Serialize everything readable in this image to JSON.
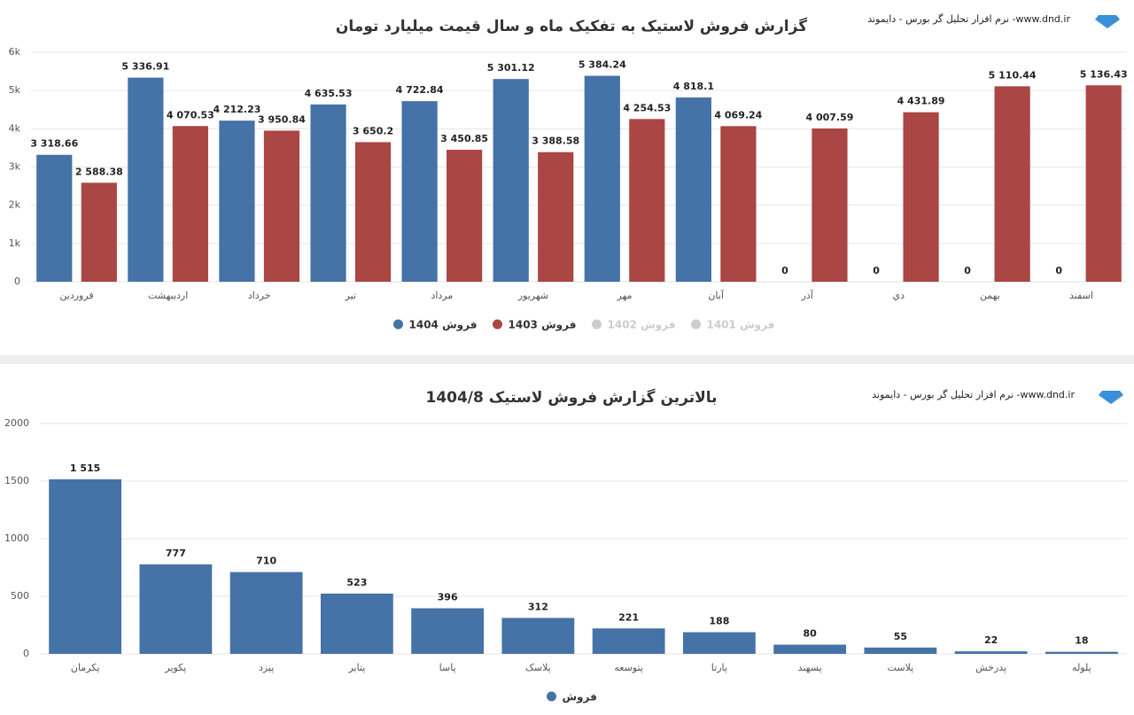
{
  "header": {
    "brand": "نرم افزار تحلیل گر بورس - دایموند -www.dnd.ir"
  },
  "chart_data": [
    {
      "type": "bar",
      "title": "گزارش فروش لاستیک به تفکیک ماه و سال قیمت میلیارد تومان",
      "categories": [
        "فروردین",
        "اردیبهشت",
        "خرداد",
        "تیر",
        "مرداد",
        "شهریور",
        "مهر",
        "آبان",
        "آذر",
        "دي",
        "بهمن",
        "اسفند"
      ],
      "series": [
        {
          "name": "فروش 1404",
          "color": "#4572a7",
          "values": [
            3318.66,
            5336.91,
            4212.23,
            4635.53,
            4722.84,
            5301.12,
            5384.24,
            4818.1,
            0,
            0,
            0,
            0
          ],
          "value_labels": [
            "3 318.66",
            "5 336.91",
            "4 212.23",
            "4 635.53",
            "4 722.84",
            "5 301.12",
            "5 384.24",
            "4 818.1",
            "0",
            "0",
            "0",
            "0"
          ]
        },
        {
          "name": "فروش 1403",
          "color": "#aa4643",
          "values": [
            2588.38,
            4070.53,
            3950.84,
            3650.2,
            3450.85,
            3388.58,
            4254.53,
            4069.24,
            4007.59,
            4431.89,
            5110.44,
            5136.43
          ],
          "value_labels": [
            "2 588.38",
            "4 070.53",
            "3 950.84",
            "3 650.2",
            "3 450.85",
            "3 388.58",
            "4 254.53",
            "4 069.24",
            "4 007.59",
            "4 431.89",
            "5 110.44",
            "5 136.43"
          ]
        },
        {
          "name": "فروش 1402",
          "color": "#cccccc",
          "hidden": true
        },
        {
          "name": "فروش 1401",
          "color": "#cccccc",
          "hidden": true
        }
      ],
      "ylim": [
        0,
        6000
      ],
      "yticks": [
        0,
        {
          "value": 1000,
          "label": "1k"
        },
        {
          "value": 2000,
          "label": "2k"
        },
        {
          "value": 3000,
          "label": "3k"
        },
        {
          "value": 4000,
          "label": "4k"
        },
        {
          "value": 5000,
          "label": "5k"
        },
        {
          "value": 6000,
          "label": "6k"
        }
      ],
      "grid": true
    },
    {
      "type": "bar",
      "title": "بالاترین گزارش فروش لاستیک 1404/8",
      "categories": [
        "پکرمان",
        "پکویر",
        "پیزد",
        "پتایر",
        "پاسا",
        "پلاسک",
        "پتوسعه",
        "پارتا",
        "پسهند",
        "پلاست",
        "پدرخش",
        "پلوله"
      ],
      "series": [
        {
          "name": "فروش",
          "color": "#4572a7",
          "values": [
            1515,
            777,
            710,
            523,
            396,
            312,
            221,
            188,
            80,
            55,
            22,
            18
          ],
          "value_labels": [
            "1 515",
            "777",
            "710",
            "523",
            "396",
            "312",
            "221",
            "188",
            "80",
            "55",
            "22",
            "18"
          ]
        }
      ],
      "ylim": [
        0,
        2000
      ],
      "yticks": [
        0,
        500,
        1000,
        1500,
        2000
      ],
      "grid": true
    }
  ]
}
